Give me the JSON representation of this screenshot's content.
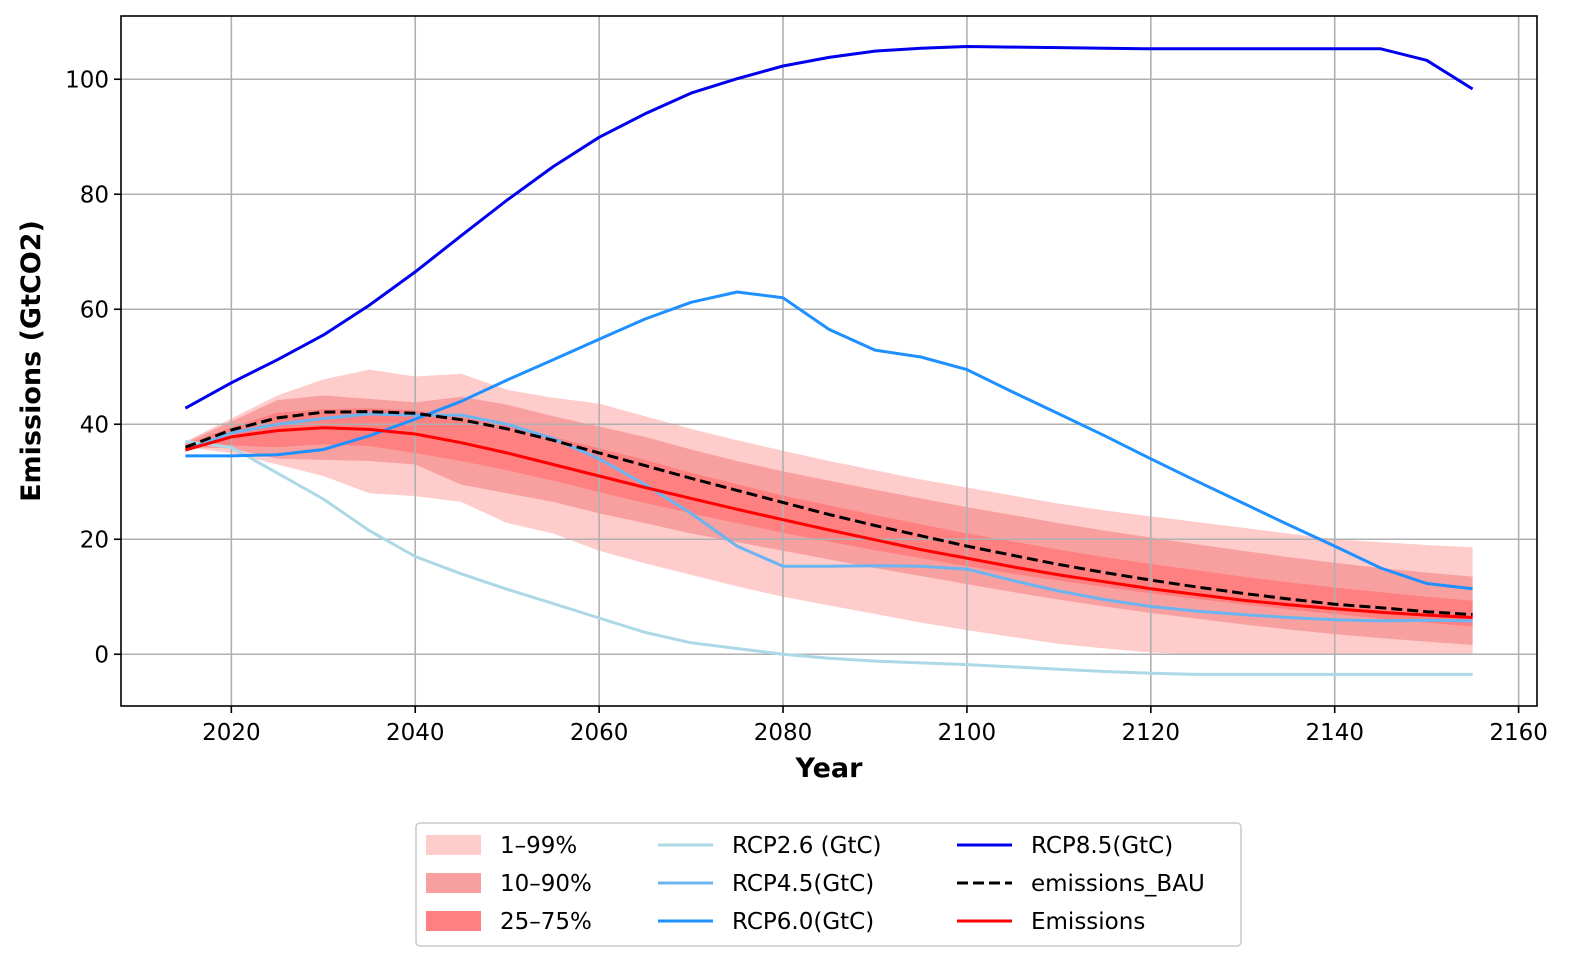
{
  "chart_data": {
    "type": "line",
    "title": "",
    "xlabel": "Year",
    "ylabel": "Emissions (GtCO2)",
    "xlim": [
      2008,
      2162
    ],
    "ylim": [
      -9,
      111
    ],
    "grid": true,
    "xticks": [
      2020,
      2040,
      2060,
      2080,
      2100,
      2120,
      2140,
      2160
    ],
    "yticks": [
      0,
      20,
      40,
      60,
      80,
      100
    ],
    "x": [
      2015,
      2020,
      2025,
      2030,
      2035,
      2040,
      2045,
      2050,
      2055,
      2060,
      2065,
      2070,
      2075,
      2080,
      2085,
      2090,
      2095,
      2100,
      2105,
      2110,
      2115,
      2120,
      2125,
      2130,
      2135,
      2140,
      2145,
      2150,
      2155
    ],
    "bands": [
      {
        "name": "1–99%",
        "color": "#ffcccc",
        "lower": [
          36.0,
          35.0,
          33.0,
          31.0,
          28.0,
          27.5,
          26.5,
          22.8,
          21.0,
          18.0,
          15.8,
          13.8,
          11.8,
          10.0,
          8.5,
          7.0,
          5.5,
          4.2,
          3.0,
          1.8,
          1.0,
          0.3,
          0,
          0,
          0,
          0,
          0,
          0,
          0
        ],
        "upper": [
          37.0,
          41.0,
          45.0,
          47.8,
          49.5,
          48.3,
          48.8,
          46.0,
          44.6,
          43.6,
          41.4,
          39.2,
          37.2,
          35.4,
          33.6,
          32.0,
          30.4,
          29.0,
          27.6,
          26.2,
          25.0,
          24.0,
          23.0,
          22.0,
          21.0,
          20.0,
          19.5,
          19.0,
          18.6
        ]
      },
      {
        "name": "10–90%",
        "color": "#f8a0a0",
        "lower": [
          36.0,
          35.8,
          34.0,
          33.8,
          33.6,
          33.0,
          29.5,
          28.0,
          26.5,
          24.5,
          22.8,
          21.0,
          19.5,
          18.0,
          16.5,
          15.0,
          13.6,
          12.2,
          10.8,
          9.5,
          8.3,
          7.2,
          6.2,
          5.2,
          4.3,
          3.5,
          2.8,
          2.2,
          1.6
        ],
        "upper": [
          36.8,
          40.5,
          44.2,
          45.0,
          44.4,
          43.8,
          44.8,
          43.4,
          41.4,
          39.6,
          37.8,
          35.6,
          33.6,
          31.8,
          30.2,
          28.6,
          27.1,
          25.6,
          24.2,
          22.8,
          21.5,
          20.3,
          19.1,
          18.0,
          16.9,
          15.9,
          15.0,
          14.2,
          13.5
        ]
      },
      {
        "name": "25–75%",
        "color": "#ff8080",
        "lower": [
          36.0,
          36.3,
          36.0,
          36.5,
          36.2,
          35.0,
          33.6,
          32.0,
          30.2,
          28.2,
          26.3,
          24.5,
          22.8,
          21.1,
          19.6,
          18.1,
          16.7,
          15.3,
          14.0,
          12.8,
          11.7,
          10.6,
          9.6,
          8.7,
          7.8,
          7.0,
          6.2,
          5.5,
          4.8
        ],
        "upper": [
          36.5,
          39.5,
          42.0,
          42.6,
          42.8,
          42.4,
          41.2,
          39.8,
          37.8,
          35.8,
          33.8,
          31.6,
          29.6,
          27.6,
          25.9,
          24.2,
          22.6,
          21.0,
          19.6,
          18.2,
          16.9,
          15.7,
          14.6,
          13.5,
          12.5,
          11.6,
          10.8,
          10.0,
          9.3
        ]
      }
    ],
    "series": [
      {
        "name": "RCP2.6 (GtC)",
        "color": "#add8e6",
        "style": "solid",
        "values": [
          37.0,
          36.0,
          31.5,
          27.0,
          21.5,
          17.0,
          14.0,
          11.3,
          8.8,
          6.3,
          3.8,
          2.0,
          1.0,
          0.0,
          -0.7,
          -1.2,
          -1.5,
          -1.8,
          -2.2,
          -2.6,
          -3.0,
          -3.3,
          -3.5,
          -3.5,
          -3.5,
          -3.5,
          -3.5,
          -3.5,
          -3.5
        ]
      },
      {
        "name": "RCP4.5(GtC)",
        "color": "#6cb4f0",
        "style": "solid",
        "values": [
          35.5,
          38.5,
          40.0,
          41.0,
          41.8,
          41.6,
          41.6,
          40.0,
          37.5,
          34.0,
          29.5,
          24.5,
          18.8,
          15.3,
          15.3,
          15.4,
          15.3,
          14.8,
          12.8,
          11.0,
          9.5,
          8.3,
          7.5,
          6.9,
          6.4,
          6.0,
          5.8,
          5.9,
          5.8
        ]
      },
      {
        "name": "RCP6.0(GtC)",
        "color": "#1e90ff",
        "style": "solid",
        "values": [
          34.5,
          34.5,
          34.7,
          35.6,
          38.0,
          40.9,
          44.0,
          47.7,
          51.2,
          54.8,
          58.3,
          61.2,
          63.0,
          62.0,
          56.5,
          52.9,
          51.7,
          49.5,
          45.6,
          41.8,
          38.0,
          34.0,
          30.1,
          26.3,
          22.5,
          18.8,
          15.0,
          12.3,
          11.4
        ]
      },
      {
        "name": "RCP8.5(GtC)",
        "color": "#0000ee",
        "style": "solid",
        "values": [
          42.8,
          47.2,
          51.2,
          55.5,
          60.7,
          66.5,
          72.8,
          79.0,
          84.8,
          89.9,
          94.0,
          97.6,
          100.1,
          102.3,
          103.8,
          104.9,
          105.4,
          105.7,
          105.6,
          105.5,
          105.4,
          105.3,
          105.3,
          105.3,
          105.3,
          105.3,
          105.3,
          103.3,
          98.3
        ]
      },
      {
        "name": "emissions_BAU",
        "color": "#000000",
        "style": "dashed",
        "values": [
          36.0,
          39.0,
          41.1,
          42.1,
          42.2,
          41.9,
          40.8,
          39.2,
          37.2,
          35.0,
          32.8,
          30.6,
          28.5,
          26.4,
          24.3,
          22.4,
          20.6,
          18.8,
          17.2,
          15.6,
          14.2,
          12.9,
          11.7,
          10.6,
          9.6,
          8.7,
          8.1,
          7.4,
          6.9
        ]
      },
      {
        "name": "Emissions",
        "color": "#ff0000",
        "style": "solid",
        "values": [
          35.5,
          37.8,
          38.9,
          39.4,
          39.1,
          38.3,
          36.8,
          35.0,
          33.0,
          31.0,
          29.0,
          27.1,
          25.2,
          23.4,
          21.6,
          19.9,
          18.2,
          16.7,
          15.2,
          13.8,
          12.6,
          11.4,
          10.4,
          9.4,
          8.6,
          7.9,
          7.3,
          6.8,
          6.4
        ]
      }
    ],
    "legend": {
      "placement": "bottom-center",
      "entries": [
        "1–99%",
        "10–90%",
        "25–75%",
        "RCP2.6 (GtC)",
        "RCP4.5(GtC)",
        "RCP6.0(GtC)",
        "RCP8.5(GtC)",
        "emissions_BAU",
        "Emissions"
      ]
    }
  }
}
